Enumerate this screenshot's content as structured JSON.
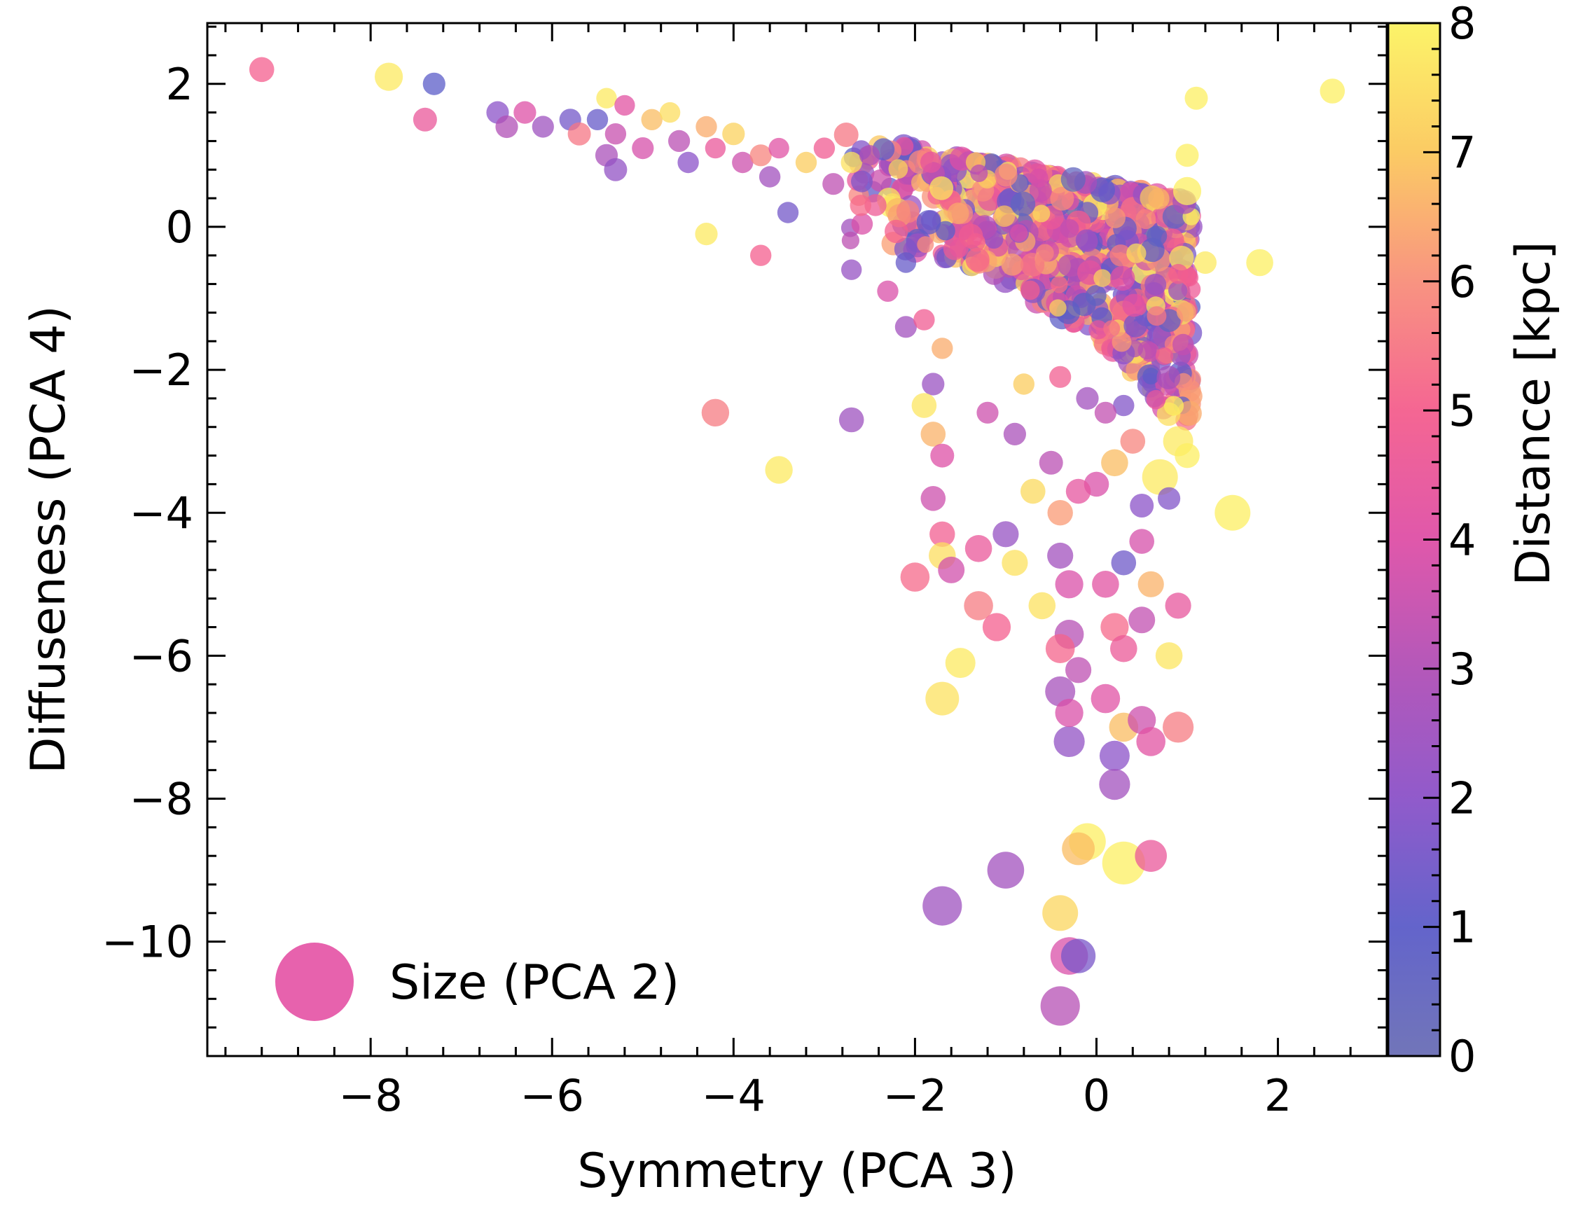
{
  "chart_data": {
    "type": "scatter",
    "xlabel": "Symmetry (PCA 3)",
    "ylabel": "Diffuseness (PCA 4)",
    "xlim": [
      -9.8,
      3.2
    ],
    "ylim": [
      -11.6,
      2.85
    ],
    "xticks": [
      -8,
      -6,
      -4,
      -2,
      0,
      2
    ],
    "xtick_labels": [
      "−8",
      "−6",
      "−4",
      "−2",
      "0",
      "2"
    ],
    "yticks": [
      -10,
      -8,
      -6,
      -4,
      -2,
      0,
      2
    ],
    "ytick_labels": [
      "−10",
      "−8",
      "−6",
      "−4",
      "−2",
      "0",
      "2"
    ],
    "colorbar": {
      "label": "Distance [kpc]",
      "range": [
        0,
        8
      ],
      "ticks": [
        0,
        1,
        2,
        3,
        4,
        5,
        6,
        7,
        8
      ],
      "tick_labels": [
        "0",
        "1",
        "2",
        "3",
        "4",
        "5",
        "6",
        "7",
        "8"
      ],
      "colormap": "plasma (partial)",
      "stops": [
        "#6a6eb5",
        "#5b5cc8",
        "#8b52c8",
        "#b04fb6",
        "#de4fa6",
        "#f45e8d",
        "#f88e7a",
        "#fbc85c",
        "#fcf361"
      ]
    },
    "legend": {
      "label": "Size (PCA 2)",
      "position": "lower-left",
      "marker_color": "#e3479f"
    },
    "marker_alpha": 0.75,
    "size_note": "marker area scales with Size (PCA 2); s = relative size 1..10",
    "points": [
      {
        "x": -9.2,
        "y": 2.2,
        "c": 5.0,
        "s": 2.2
      },
      {
        "x": -7.8,
        "y": 2.1,
        "c": 7.8,
        "s": 2.8
      },
      {
        "x": -7.3,
        "y": 2.0,
        "c": 1.0,
        "s": 1.8
      },
      {
        "x": -7.4,
        "y": 1.5,
        "c": 4.5,
        "s": 2.0
      },
      {
        "x": -6.6,
        "y": 1.6,
        "c": 2.0,
        "s": 1.8
      },
      {
        "x": -6.5,
        "y": 1.4,
        "c": 3.0,
        "s": 1.8
      },
      {
        "x": -6.3,
        "y": 1.6,
        "c": 4.0,
        "s": 1.8
      },
      {
        "x": -6.1,
        "y": 1.4,
        "c": 2.5,
        "s": 1.7
      },
      {
        "x": -5.8,
        "y": 1.5,
        "c": 1.5,
        "s": 1.7
      },
      {
        "x": -5.7,
        "y": 1.3,
        "c": 5.5,
        "s": 1.9
      },
      {
        "x": -5.5,
        "y": 1.5,
        "c": 1.2,
        "s": 1.6
      },
      {
        "x": -5.4,
        "y": 1.8,
        "c": 7.8,
        "s": 1.5
      },
      {
        "x": -5.2,
        "y": 1.7,
        "c": 4.2,
        "s": 1.5
      },
      {
        "x": -5.3,
        "y": 1.3,
        "c": 3.5,
        "s": 1.6
      },
      {
        "x": -5.4,
        "y": 1.0,
        "c": 2.8,
        "s": 1.8
      },
      {
        "x": -5.3,
        "y": 0.8,
        "c": 2.2,
        "s": 1.9
      },
      {
        "x": -5.0,
        "y": 1.1,
        "c": 3.8,
        "s": 1.7
      },
      {
        "x": -4.9,
        "y": 1.5,
        "c": 6.8,
        "s": 1.6
      },
      {
        "x": -4.7,
        "y": 1.6,
        "c": 7.5,
        "s": 1.5
      },
      {
        "x": -4.6,
        "y": 1.2,
        "c": 3.2,
        "s": 1.7
      },
      {
        "x": -4.5,
        "y": 0.9,
        "c": 2.0,
        "s": 1.6
      },
      {
        "x": -4.3,
        "y": 1.4,
        "c": 6.5,
        "s": 1.6
      },
      {
        "x": -4.2,
        "y": 1.1,
        "c": 4.5,
        "s": 1.5
      },
      {
        "x": -4.0,
        "y": 1.3,
        "c": 7.2,
        "s": 1.8
      },
      {
        "x": -3.9,
        "y": 0.9,
        "c": 3.6,
        "s": 1.6
      },
      {
        "x": -3.7,
        "y": 1.0,
        "c": 5.8,
        "s": 1.7
      },
      {
        "x": -3.6,
        "y": 0.7,
        "c": 2.6,
        "s": 1.6
      },
      {
        "x": -3.4,
        "y": 0.2,
        "c": 1.5,
        "s": 1.6
      },
      {
        "x": -3.5,
        "y": 1.1,
        "c": 4.1,
        "s": 1.5
      },
      {
        "x": -3.2,
        "y": 0.9,
        "c": 7.1,
        "s": 1.6
      },
      {
        "x": -3.0,
        "y": 1.1,
        "c": 4.8,
        "s": 1.6
      },
      {
        "x": -2.9,
        "y": 0.6,
        "c": 3.3,
        "s": 1.7
      },
      {
        "x": -2.7,
        "y": 0.9,
        "c": 7.6,
        "s": 1.6
      },
      {
        "x": -2.6,
        "y": 0.3,
        "c": 5.2,
        "s": 1.6
      },
      {
        "x": -2.5,
        "y": 1.0,
        "c": 2.9,
        "s": 1.5
      },
      {
        "x": -4.3,
        "y": -0.1,
        "c": 7.8,
        "s": 1.8
      },
      {
        "x": -3.7,
        "y": -0.4,
        "c": 5.0,
        "s": 1.6
      },
      {
        "x": -2.7,
        "y": -0.6,
        "c": 2.3,
        "s": 1.5
      },
      {
        "x": -2.3,
        "y": -0.9,
        "c": 3.9,
        "s": 1.6
      },
      {
        "x": -2.1,
        "y": -0.5,
        "c": 1.2,
        "s": 1.5
      },
      {
        "x": -2.1,
        "y": -1.4,
        "c": 2.6,
        "s": 1.7
      },
      {
        "x": -1.9,
        "y": -1.3,
        "c": 4.8,
        "s": 1.6
      },
      {
        "x": -1.8,
        "y": -2.2,
        "c": 2.4,
        "s": 1.8
      },
      {
        "x": -1.7,
        "y": -1.7,
        "c": 6.5,
        "s": 1.6
      },
      {
        "x": -4.2,
        "y": -2.6,
        "c": 5.6,
        "s": 2.7
      },
      {
        "x": -3.5,
        "y": -3.4,
        "c": 7.8,
        "s": 2.7
      },
      {
        "x": -2.7,
        "y": -2.7,
        "c": 2.5,
        "s": 2.2
      },
      {
        "x": -1.9,
        "y": -2.5,
        "c": 7.7,
        "s": 2.2
      },
      {
        "x": -1.8,
        "y": -2.9,
        "c": 6.6,
        "s": 2.2
      },
      {
        "x": -1.7,
        "y": -3.2,
        "c": 4.0,
        "s": 2.0
      },
      {
        "x": -1.8,
        "y": -3.8,
        "c": 3.6,
        "s": 2.2
      },
      {
        "x": -1.7,
        "y": -4.3,
        "c": 4.9,
        "s": 2.3
      },
      {
        "x": -1.7,
        "y": -4.6,
        "c": 7.5,
        "s": 2.6
      },
      {
        "x": -1.6,
        "y": -4.8,
        "c": 3.7,
        "s": 2.5
      },
      {
        "x": -2.0,
        "y": -4.9,
        "c": 5.2,
        "s": 3.0
      },
      {
        "x": -1.3,
        "y": -4.5,
        "c": 4.5,
        "s": 2.6
      },
      {
        "x": -1.0,
        "y": -4.3,
        "c": 2.3,
        "s": 2.4
      },
      {
        "x": -0.9,
        "y": -4.7,
        "c": 7.6,
        "s": 2.4
      },
      {
        "x": -1.3,
        "y": -5.3,
        "c": 5.6,
        "s": 3.0
      },
      {
        "x": -1.1,
        "y": -5.6,
        "c": 5.0,
        "s": 2.8
      },
      {
        "x": -1.5,
        "y": -6.1,
        "c": 7.8,
        "s": 3.2
      },
      {
        "x": -1.7,
        "y": -6.6,
        "c": 7.6,
        "s": 4.0
      },
      {
        "x": -0.7,
        "y": -3.7,
        "c": 7.4,
        "s": 2.2
      },
      {
        "x": -0.5,
        "y": -3.3,
        "c": 3.2,
        "s": 2.0
      },
      {
        "x": -0.4,
        "y": -4.0,
        "c": 6.2,
        "s": 2.3
      },
      {
        "x": -0.4,
        "y": -4.6,
        "c": 2.6,
        "s": 2.4
      },
      {
        "x": -0.3,
        "y": -5.0,
        "c": 3.9,
        "s": 2.8
      },
      {
        "x": -0.3,
        "y": -5.7,
        "c": 3.1,
        "s": 3.0
      },
      {
        "x": -0.4,
        "y": -5.9,
        "c": 5.1,
        "s": 3.0
      },
      {
        "x": -0.4,
        "y": -6.5,
        "c": 2.7,
        "s": 3.2
      },
      {
        "x": -0.3,
        "y": -7.2,
        "c": 2.2,
        "s": 3.4
      },
      {
        "x": -0.3,
        "y": -6.8,
        "c": 3.9,
        "s": 2.8
      },
      {
        "x": -0.2,
        "y": -6.2,
        "c": 3.3,
        "s": 2.4
      },
      {
        "x": -0.6,
        "y": -5.3,
        "c": 7.6,
        "s": 2.6
      },
      {
        "x": 0.1,
        "y": -5.0,
        "c": 4.2,
        "s": 2.6
      },
      {
        "x": 0.3,
        "y": -4.7,
        "c": 1.4,
        "s": 2.2
      },
      {
        "x": 0.5,
        "y": -4.4,
        "c": 3.8,
        "s": 2.2
      },
      {
        "x": 0.2,
        "y": -5.6,
        "c": 5.2,
        "s": 2.8
      },
      {
        "x": 0.3,
        "y": -5.9,
        "c": 4.6,
        "s": 2.6
      },
      {
        "x": 0.5,
        "y": -5.5,
        "c": 3.4,
        "s": 2.5
      },
      {
        "x": 0.6,
        "y": -5.0,
        "c": 6.6,
        "s": 2.4
      },
      {
        "x": 0.9,
        "y": -5.3,
        "c": 4.4,
        "s": 2.4
      },
      {
        "x": 0.8,
        "y": -6.0,
        "c": 7.7,
        "s": 2.6
      },
      {
        "x": 0.1,
        "y": -6.6,
        "c": 4.1,
        "s": 3.0
      },
      {
        "x": 0.3,
        "y": -7.0,
        "c": 6.8,
        "s": 3.0
      },
      {
        "x": 0.5,
        "y": -6.9,
        "c": 3.6,
        "s": 2.8
      },
      {
        "x": 0.6,
        "y": -7.2,
        "c": 4.2,
        "s": 3.0
      },
      {
        "x": 0.9,
        "y": -7.0,
        "c": 5.6,
        "s": 3.4
      },
      {
        "x": 0.2,
        "y": -7.4,
        "c": 2.0,
        "s": 3.2
      },
      {
        "x": 0.2,
        "y": -7.8,
        "c": 2.6,
        "s": 3.4
      },
      {
        "x": -0.1,
        "y": -8.6,
        "c": 7.9,
        "s": 4.8
      },
      {
        "x": 0.3,
        "y": -8.9,
        "c": 7.9,
        "s": 6.5
      },
      {
        "x": 0.6,
        "y": -8.8,
        "c": 4.5,
        "s": 3.6
      },
      {
        "x": -0.2,
        "y": -8.7,
        "c": 6.8,
        "s": 3.8
      },
      {
        "x": -1.0,
        "y": -9.0,
        "c": 2.6,
        "s": 4.8
      },
      {
        "x": -1.7,
        "y": -9.5,
        "c": 2.5,
        "s": 5.5
      },
      {
        "x": -0.4,
        "y": -9.6,
        "c": 7.3,
        "s": 4.5
      },
      {
        "x": -0.3,
        "y": -10.2,
        "c": 3.9,
        "s": 5.0
      },
      {
        "x": -0.2,
        "y": -10.2,
        "c": 1.6,
        "s": 4.2
      },
      {
        "x": -0.4,
        "y": -10.9,
        "c": 3.1,
        "s": 5.5
      },
      {
        "x": 1.5,
        "y": -4.0,
        "c": 7.9,
        "s": 4.5
      },
      {
        "x": 1.8,
        "y": -0.5,
        "c": 7.9,
        "s": 2.6
      },
      {
        "x": 2.6,
        "y": 1.9,
        "c": 7.9,
        "s": 2.2
      },
      {
        "x": 1.1,
        "y": 1.8,
        "c": 7.9,
        "s": 1.9
      },
      {
        "x": 1.0,
        "y": 1.0,
        "c": 7.9,
        "s": 1.9
      },
      {
        "x": 1.0,
        "y": 0.5,
        "c": 7.9,
        "s": 2.8
      },
      {
        "x": 1.2,
        "y": -0.5,
        "c": 7.8,
        "s": 1.8
      },
      {
        "x": 0.9,
        "y": -3.0,
        "c": 7.8,
        "s": 3.2
      },
      {
        "x": 0.7,
        "y": -3.5,
        "c": 7.8,
        "s": 4.5
      },
      {
        "x": 0.5,
        "y": -3.9,
        "c": 2.0,
        "s": 2.0
      },
      {
        "x": 0.8,
        "y": -3.8,
        "c": 1.8,
        "s": 1.8
      },
      {
        "x": 1.0,
        "y": -3.2,
        "c": 7.9,
        "s": 2.2
      },
      {
        "x": 0.2,
        "y": -3.3,
        "c": 6.8,
        "s": 2.6
      },
      {
        "x": 0.0,
        "y": -3.6,
        "c": 3.9,
        "s": 2.2
      },
      {
        "x": -0.2,
        "y": -3.7,
        "c": 4.3,
        "s": 2.2
      },
      {
        "x": 0.4,
        "y": -3.0,
        "c": 5.8,
        "s": 2.2
      },
      {
        "x": 0.3,
        "y": -2.5,
        "c": 1.8,
        "s": 1.6
      },
      {
        "x": 0.1,
        "y": -2.6,
        "c": 3.4,
        "s": 1.7
      },
      {
        "x": -0.1,
        "y": -2.4,
        "c": 2.6,
        "s": 1.8
      },
      {
        "x": -0.4,
        "y": -2.1,
        "c": 4.9,
        "s": 1.7
      },
      {
        "x": -0.8,
        "y": -2.2,
        "c": 7.1,
        "s": 1.6
      },
      {
        "x": -1.2,
        "y": -2.6,
        "c": 3.6,
        "s": 1.7
      },
      {
        "x": -0.9,
        "y": -2.9,
        "c": 2.8,
        "s": 1.8
      }
    ],
    "dense_cluster": {
      "count": 900,
      "x_range": [
        -2.8,
        1.05
      ],
      "y_top": [
        0.35,
        1.3
      ],
      "y_bottom": [
        -0.3,
        -3.0
      ],
      "color_range": [
        0.5,
        8.0
      ]
    }
  }
}
